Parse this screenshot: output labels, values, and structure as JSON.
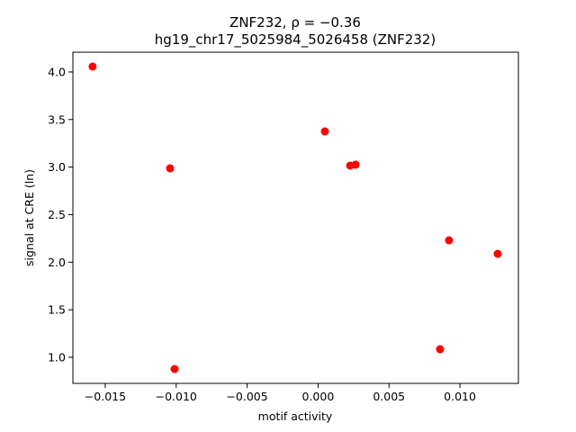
{
  "chart_data": {
    "type": "scatter",
    "title": "ZNF232, ρ = −0.36",
    "subtitle": "hg19_chr17_5025984_5026458 (ZNF232)",
    "x_label": "motif activity",
    "y_label": "signal at CRE (ln)",
    "color": "#ff0000",
    "x": [
      -0.01589,
      -0.01043,
      -0.01011,
      0.00048,
      0.00226,
      0.00264,
      0.0086,
      0.00923,
      0.01266
    ],
    "values": [
      4.057,
      2.987,
      0.877,
      3.375,
      3.016,
      3.025,
      1.085,
      2.23,
      2.088
    ],
    "xlim": [
      -0.01728,
      0.01412
    ],
    "ylim": [
      0.7256,
      4.208
    ],
    "xticks": [
      {
        "value": -0.015,
        "label": "−0.015"
      },
      {
        "value": -0.01,
        "label": "−0.010"
      },
      {
        "value": -0.005,
        "label": "−0.005"
      },
      {
        "value": 0,
        "label": "0.000"
      },
      0.005,
      {
        "value": 0.01,
        "label": "0.010"
      }
    ],
    "yticks": [
      {
        "value": 1,
        "label": "1.0"
      },
      1.5,
      {
        "value": 2,
        "label": "2.0"
      },
      2.5,
      {
        "value": 3,
        "label": "3.0"
      },
      3.5,
      {
        "value": 4,
        "label": "4.0"
      }
    ],
    "grid": false
  }
}
